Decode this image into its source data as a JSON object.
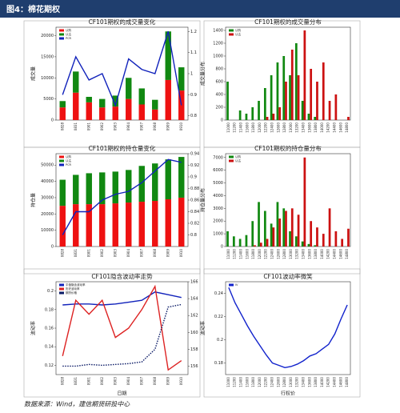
{
  "header": {
    "title": "图4：棉花期权"
  },
  "footer": {
    "source": "数据来源：Wind，建信期货研投中心"
  },
  "chart_data": [
    {
      "type": "bar",
      "stacked": true,
      "title": "CF101期权的成交量变化",
      "ylabel": "成交量",
      "categories": [
        "0828",
        "0831",
        "0901",
        "0902",
        "0903",
        "0904",
        "0907",
        "0908",
        "0909",
        "0910"
      ],
      "series": [
        {
          "name": "认购",
          "kind": "bar",
          "color": "#ee1111",
          "values": [
            3000,
            6500,
            4200,
            3000,
            3200,
            5000,
            3700,
            2500,
            9500,
            7000
          ]
        },
        {
          "name": "认沽",
          "kind": "bar",
          "color": "#118811",
          "values": [
            1500,
            5000,
            1300,
            2000,
            2600,
            5000,
            3800,
            2300,
            11500,
            5500
          ]
        },
        {
          "name": "PCR",
          "kind": "line",
          "axis": "y2",
          "color": "#1122bb",
          "values": [
            0.9,
            1.08,
            0.97,
            1.0,
            0.85,
            1.07,
            1.02,
            1.0,
            1.2,
            0.85
          ]
        }
      ],
      "ylim": [
        0,
        22000
      ],
      "yticks": [
        0,
        5000,
        10000,
        15000,
        20000
      ],
      "y2lim": [
        0.78,
        1.22
      ],
      "y2ticks": [
        0.8,
        0.9,
        1.0,
        1.1,
        1.2
      ]
    },
    {
      "type": "bar",
      "stacked": false,
      "title": "CF101期权的成交量分布",
      "ylabel": "成交量分布",
      "categories": [
        "11000",
        "11200",
        "11400",
        "11600",
        "11800",
        "12000",
        "12200",
        "12400",
        "12600",
        "12800",
        "13000",
        "13200",
        "13400",
        "13600",
        "13800",
        "14000",
        "14200",
        "14400",
        "14600",
        "14800"
      ],
      "series": [
        {
          "name": "认购",
          "kind": "bar",
          "color": "#118811",
          "values": [
            600,
            0,
            150,
            100,
            200,
            300,
            500,
            700,
            900,
            1000,
            700,
            1200,
            300,
            100,
            50,
            0,
            0,
            0,
            0,
            0
          ]
        },
        {
          "name": "认沽",
          "kind": "bar",
          "color": "#cc1111",
          "values": [
            0,
            0,
            0,
            0,
            0,
            0,
            50,
            100,
            200,
            600,
            1100,
            700,
            1400,
            800,
            600,
            900,
            300,
            400,
            0,
            50
          ]
        }
      ],
      "ylim": [
        0,
        1450
      ],
      "yticks": [
        0,
        200,
        400,
        600,
        800,
        1000,
        1200,
        1400
      ]
    },
    {
      "type": "bar",
      "stacked": true,
      "title": "CF101期权的持仓量变化",
      "ylabel": "持仓量",
      "categories": [
        "0828",
        "0831",
        "0901",
        "0902",
        "0903",
        "0904",
        "0907",
        "0908",
        "0909",
        "0910"
      ],
      "series": [
        {
          "name": "认购",
          "kind": "bar",
          "color": "#ee1111",
          "values": [
            25000,
            26000,
            26000,
            26000,
            26500,
            27000,
            27500,
            28000,
            29000,
            30000
          ]
        },
        {
          "name": "认沽",
          "kind": "bar",
          "color": "#118811",
          "values": [
            16000,
            18000,
            19000,
            19500,
            19500,
            20000,
            22000,
            23000,
            24500,
            25000
          ]
        },
        {
          "name": "PCR",
          "kind": "line",
          "axis": "y2",
          "color": "#1122bb",
          "values": [
            0.8,
            0.84,
            0.84,
            0.86,
            0.87,
            0.875,
            0.89,
            0.91,
            0.93,
            0.925
          ]
        }
      ],
      "ylim": [
        0,
        57000
      ],
      "yticks": [
        0,
        10000,
        20000,
        30000,
        40000,
        50000
      ],
      "y2lim": [
        0.78,
        0.94
      ],
      "y2ticks": [
        0.8,
        0.82,
        0.84,
        0.86,
        0.88,
        0.9,
        0.92,
        0.94
      ]
    },
    {
      "type": "bar",
      "stacked": false,
      "title": "CF101期权的持仓量分布",
      "ylabel": "持仓量分布",
      "categories": [
        "11000",
        "11200",
        "11400",
        "11600",
        "11800",
        "12000",
        "12200",
        "12400",
        "12600",
        "12800",
        "13000",
        "13200",
        "13400",
        "13600",
        "13800",
        "14000",
        "14200",
        "14400",
        "14600",
        "14800"
      ],
      "series": [
        {
          "name": "认购",
          "kind": "bar",
          "color": "#118811",
          "values": [
            1200,
            800,
            600,
            900,
            2000,
            3500,
            2800,
            1800,
            3500,
            3000,
            1200,
            800,
            400,
            200,
            100,
            0,
            0,
            0,
            0,
            0
          ]
        },
        {
          "name": "认沽",
          "kind": "bar",
          "color": "#cc1111",
          "values": [
            0,
            0,
            0,
            0,
            100,
            300,
            600,
            1500,
            2200,
            2800,
            3000,
            2500,
            7000,
            2000,
            1500,
            1000,
            3000,
            1200,
            600,
            1400
          ]
        }
      ],
      "ylim": [
        0,
        7300
      ],
      "yticks": [
        0,
        1000,
        2000,
        3000,
        4000,
        5000,
        6000,
        7000
      ]
    },
    {
      "type": "line",
      "title": "CF101隐含波动率走势",
      "ylabel": "波动率",
      "xlabel": "日期",
      "categories": [
        "0828",
        "0831",
        "0901",
        "0902",
        "0903",
        "0904",
        "0907",
        "0908",
        "0909",
        "0910"
      ],
      "series": [
        {
          "name": "平值隐含波动率",
          "kind": "line",
          "color": "#1122bb",
          "values": [
            0.185,
            0.186,
            0.186,
            0.185,
            0.186,
            0.188,
            0.19,
            0.199,
            0.196,
            0.193
          ]
        },
        {
          "name": "历史波动率",
          "kind": "line",
          "color": "#dd2222",
          "values": [
            0.13,
            0.19,
            0.175,
            0.19,
            0.15,
            0.16,
            0.18,
            0.205,
            0.115,
            0.125
          ]
        },
        {
          "name": "期货价格",
          "kind": "line",
          "axis": "y2",
          "dash": true,
          "color": "#0a1a66",
          "values": [
            156,
            156,
            156.2,
            156.1,
            156.2,
            156.3,
            156.5,
            158,
            163,
            163.3
          ]
        }
      ],
      "ylim": [
        0.11,
        0.21
      ],
      "yticks": [
        0.12,
        0.14,
        0.16,
        0.18,
        0.2
      ],
      "y2lim": [
        155,
        166
      ],
      "y2ticks": [
        156,
        158,
        160,
        162,
        164,
        166
      ]
    },
    {
      "type": "line",
      "title": "CF101波动率微笑",
      "ylabel": "波动率",
      "xlabel": "行权价",
      "categories": [
        "11000",
        "11200",
        "11400",
        "11600",
        "11800",
        "12000",
        "12200",
        "12400",
        "12600",
        "12800",
        "13000",
        "13200",
        "13400",
        "13600",
        "13800",
        "14000",
        "14200",
        "14400",
        "14600",
        "14800"
      ],
      "series": [
        {
          "name": "IV",
          "kind": "line",
          "color": "#1122cc",
          "values": [
            0.245,
            0.232,
            0.222,
            0.212,
            0.203,
            0.195,
            0.187,
            0.18,
            0.178,
            0.176,
            0.177,
            0.179,
            0.182,
            0.186,
            0.188,
            0.192,
            0.196,
            0.205,
            0.218,
            0.23
          ]
        }
      ],
      "ylim": [
        0.17,
        0.25
      ],
      "yticks": [
        0.18,
        0.2,
        0.22,
        0.24
      ]
    }
  ]
}
